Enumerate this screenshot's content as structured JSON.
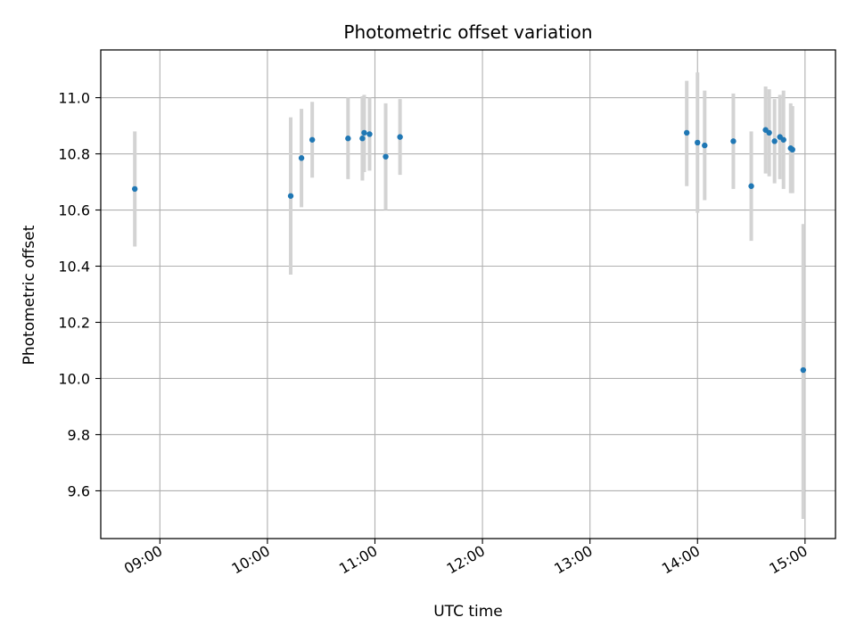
{
  "chart_data": {
    "type": "scatter",
    "title": "Photometric offset variation",
    "xlabel": "UTC time",
    "ylabel": "Photometric offset",
    "x_ticks": [
      "09:00",
      "10:00",
      "11:00",
      "12:00",
      "13:00",
      "14:00",
      "15:00"
    ],
    "y_ticks": [
      9.6,
      9.8,
      10.0,
      10.2,
      10.4,
      10.6,
      10.8,
      11.0
    ],
    "x_range": [
      "08:27",
      "15:17"
    ],
    "ylim": [
      9.43,
      11.17
    ],
    "grid": true,
    "point_color": "#1f77b4",
    "errorbar_color": "#d3d3d3",
    "points": [
      {
        "t": "08:46",
        "y": 10.675,
        "lo": 10.47,
        "hi": 10.88
      },
      {
        "t": "10:13",
        "y": 10.65,
        "lo": 10.37,
        "hi": 10.93
      },
      {
        "t": "10:19",
        "y": 10.785,
        "lo": 10.61,
        "hi": 10.96
      },
      {
        "t": "10:25",
        "y": 10.85,
        "lo": 10.715,
        "hi": 10.985
      },
      {
        "t": "10:45",
        "y": 10.855,
        "lo": 10.71,
        "hi": 11.0
      },
      {
        "t": "10:53",
        "y": 10.855,
        "lo": 10.705,
        "hi": 11.005
      },
      {
        "t": "10:54",
        "y": 10.875,
        "lo": 10.735,
        "hi": 11.01
      },
      {
        "t": "10:57",
        "y": 10.87,
        "lo": 10.74,
        "hi": 11.0
      },
      {
        "t": "11:06",
        "y": 10.79,
        "lo": 10.6,
        "hi": 10.98
      },
      {
        "t": "11:14",
        "y": 10.86,
        "lo": 10.725,
        "hi": 10.995
      },
      {
        "t": "13:54",
        "y": 10.875,
        "lo": 10.685,
        "hi": 11.06
      },
      {
        "t": "14:00",
        "y": 10.84,
        "lo": 10.59,
        "hi": 11.09
      },
      {
        "t": "14:04",
        "y": 10.83,
        "lo": 10.635,
        "hi": 11.025
      },
      {
        "t": "14:20",
        "y": 10.845,
        "lo": 10.675,
        "hi": 11.015
      },
      {
        "t": "14:30",
        "y": 10.685,
        "lo": 10.49,
        "hi": 10.88
      },
      {
        "t": "14:38",
        "y": 10.885,
        "lo": 10.73,
        "hi": 11.04
      },
      {
        "t": "14:40",
        "y": 10.875,
        "lo": 10.72,
        "hi": 11.03
      },
      {
        "t": "14:43",
        "y": 10.845,
        "lo": 10.695,
        "hi": 10.995
      },
      {
        "t": "14:46",
        "y": 10.86,
        "lo": 10.71,
        "hi": 11.01
      },
      {
        "t": "14:48",
        "y": 10.85,
        "lo": 10.675,
        "hi": 11.025
      },
      {
        "t": "14:52",
        "y": 10.82,
        "lo": 10.66,
        "hi": 10.98
      },
      {
        "t": "14:53",
        "y": 10.815,
        "lo": 10.66,
        "hi": 10.97
      },
      {
        "t": "14:59",
        "y": 10.03,
        "lo": 9.5,
        "hi": 10.55
      }
    ]
  }
}
